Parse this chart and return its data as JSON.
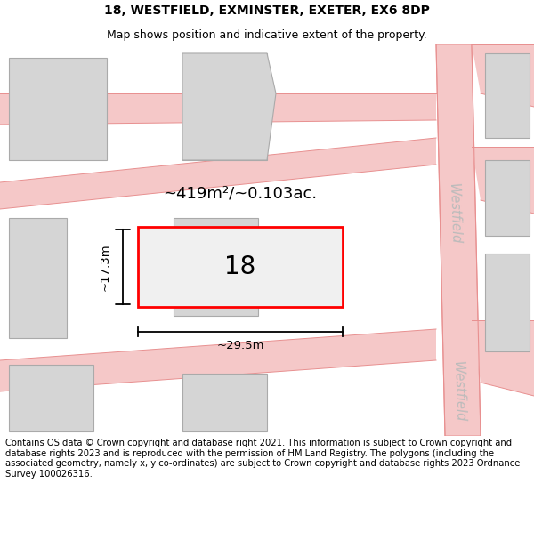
{
  "title_line1": "18, WESTFIELD, EXMINSTER, EXETER, EX6 8DP",
  "title_line2": "Map shows position and indicative extent of the property.",
  "footer_text": "Contains OS data © Crown copyright and database right 2021. This information is subject to Crown copyright and database rights 2023 and is reproduced with the permission of HM Land Registry. The polygons (including the associated geometry, namely x, y co-ordinates) are subject to Crown copyright and database rights 2023 Ordnance Survey 100026316.",
  "road_fill": "#f5c8c8",
  "road_line": "#e89090",
  "bld_fill": "#d5d5d5",
  "bld_edge": "#aaaaaa",
  "plot_edge": "#ff0000",
  "plot_fill": "#f0f0f0",
  "street_color": "#bbbbbb",
  "area_label": "~419m²/~0.103ac.",
  "width_label": "~29.5m",
  "height_label": "~17.3m",
  "plot_number": "18",
  "street_name": "Westfield"
}
